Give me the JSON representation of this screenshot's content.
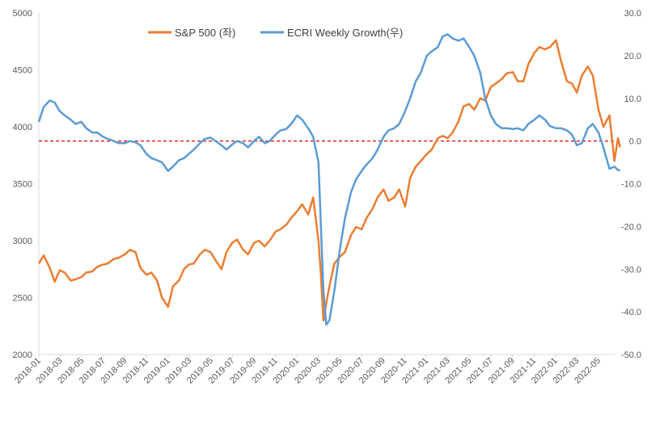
{
  "chart_data": {
    "type": "line",
    "x_ticks": [
      "2018-01",
      "2018-03",
      "2018-05",
      "2018-07",
      "2018-09",
      "2018-11",
      "2019-01",
      "2019-03",
      "2019-05",
      "2019-07",
      "2019-09",
      "2019-11",
      "2020-01",
      "2020-03",
      "2020-05",
      "2020-07",
      "2020-09",
      "2020-11",
      "2021-01",
      "2021-03",
      "2021-05",
      "2021-07",
      "2021-09",
      "2021-11",
      "2022-01",
      "2022-03",
      "2022-05"
    ],
    "y_left": {
      "ticks": [
        "2000",
        "2500",
        "3000",
        "3500",
        "4000",
        "4500",
        "5000"
      ],
      "min": 2000,
      "max": 5000
    },
    "y_right": {
      "ticks": [
        "-50.0",
        "-40.0",
        "-30.0",
        "-20.0",
        "-10.0",
        "0.0",
        "10.0",
        "20.0",
        "30.0"
      ],
      "min": -50,
      "max": 30
    },
    "reference_line": {
      "axis": "right",
      "value": 0,
      "color": "#e00000",
      "style": "dashed"
    },
    "grid": false,
    "legend_position": "top",
    "series": [
      {
        "name": "S&P 500 (좌)",
        "axis": "left",
        "color": "#ed7d31",
        "points": [
          [
            "2018-01",
            2800
          ],
          [
            "2018-01-15",
            2870
          ],
          [
            "2018-02",
            2760
          ],
          [
            "2018-02-15",
            2640
          ],
          [
            "2018-03",
            2740
          ],
          [
            "2018-03-15",
            2720
          ],
          [
            "2018-04",
            2650
          ],
          [
            "2018-04-15",
            2660
          ],
          [
            "2018-05",
            2680
          ],
          [
            "2018-05-15",
            2720
          ],
          [
            "2018-06",
            2730
          ],
          [
            "2018-06-15",
            2770
          ],
          [
            "2018-07",
            2790
          ],
          [
            "2018-07-15",
            2800
          ],
          [
            "2018-08",
            2840
          ],
          [
            "2018-08-15",
            2850
          ],
          [
            "2018-09",
            2880
          ],
          [
            "2018-09-15",
            2920
          ],
          [
            "2018-10",
            2900
          ],
          [
            "2018-10-15",
            2760
          ],
          [
            "2018-11",
            2700
          ],
          [
            "2018-11-15",
            2720
          ],
          [
            "2018-12",
            2650
          ],
          [
            "2018-12-15",
            2500
          ],
          [
            "2019-01",
            2420
          ],
          [
            "2019-01-15",
            2600
          ],
          [
            "2019-02",
            2650
          ],
          [
            "2019-02-15",
            2750
          ],
          [
            "2019-03",
            2790
          ],
          [
            "2019-03-15",
            2800
          ],
          [
            "2019-04",
            2880
          ],
          [
            "2019-04-15",
            2920
          ],
          [
            "2019-05",
            2900
          ],
          [
            "2019-05-15",
            2830
          ],
          [
            "2019-06",
            2750
          ],
          [
            "2019-06-15",
            2900
          ],
          [
            "2019-07",
            2980
          ],
          [
            "2019-07-15",
            3010
          ],
          [
            "2019-08",
            2920
          ],
          [
            "2019-08-15",
            2880
          ],
          [
            "2019-09",
            2980
          ],
          [
            "2019-09-15",
            3000
          ],
          [
            "2019-10",
            2950
          ],
          [
            "2019-10-15",
            3000
          ],
          [
            "2019-11",
            3080
          ],
          [
            "2019-11-15",
            3100
          ],
          [
            "2019-12",
            3140
          ],
          [
            "2019-12-15",
            3200
          ],
          [
            "2020-01",
            3260
          ],
          [
            "2020-01-15",
            3320
          ],
          [
            "2020-02",
            3230
          ],
          [
            "2020-02-15",
            3380
          ],
          [
            "2020-03",
            3000
          ],
          [
            "2020-03-08",
            2700
          ],
          [
            "2020-03-15",
            2300
          ],
          [
            "2020-03-23",
            2450
          ],
          [
            "2020-04",
            2600
          ],
          [
            "2020-04-15",
            2800
          ],
          [
            "2020-05",
            2860
          ],
          [
            "2020-05-15",
            2900
          ],
          [
            "2020-06",
            3050
          ],
          [
            "2020-06-15",
            3120
          ],
          [
            "2020-07",
            3100
          ],
          [
            "2020-07-15",
            3200
          ],
          [
            "2020-08",
            3280
          ],
          [
            "2020-08-15",
            3380
          ],
          [
            "2020-09",
            3450
          ],
          [
            "2020-09-15",
            3350
          ],
          [
            "2020-10",
            3380
          ],
          [
            "2020-10-15",
            3450
          ],
          [
            "2020-11",
            3300
          ],
          [
            "2020-11-15",
            3550
          ],
          [
            "2020-12",
            3650
          ],
          [
            "2020-12-15",
            3700
          ],
          [
            "2021-01",
            3760
          ],
          [
            "2021-01-15",
            3800
          ],
          [
            "2021-02",
            3900
          ],
          [
            "2021-02-15",
            3920
          ],
          [
            "2021-03",
            3900
          ],
          [
            "2021-03-15",
            3950
          ],
          [
            "2021-04",
            4050
          ],
          [
            "2021-04-15",
            4180
          ],
          [
            "2021-05",
            4200
          ],
          [
            "2021-05-15",
            4150
          ],
          [
            "2021-06",
            4250
          ],
          [
            "2021-06-15",
            4230
          ],
          [
            "2021-07",
            4350
          ],
          [
            "2021-07-15",
            4380
          ],
          [
            "2021-08",
            4420
          ],
          [
            "2021-08-15",
            4470
          ],
          [
            "2021-09",
            4480
          ],
          [
            "2021-09-15",
            4400
          ],
          [
            "2021-10",
            4400
          ],
          [
            "2021-10-15",
            4550
          ],
          [
            "2021-11",
            4650
          ],
          [
            "2021-11-15",
            4700
          ],
          [
            "2021-12",
            4680
          ],
          [
            "2021-12-15",
            4700
          ],
          [
            "2022-01",
            4760
          ],
          [
            "2022-01-15",
            4580
          ],
          [
            "2022-02",
            4400
          ],
          [
            "2022-02-15",
            4380
          ],
          [
            "2022-03",
            4300
          ],
          [
            "2022-03-15",
            4450
          ],
          [
            "2022-04",
            4530
          ],
          [
            "2022-04-15",
            4450
          ],
          [
            "2022-05",
            4150
          ],
          [
            "2022-05-15",
            4000
          ],
          [
            "2022-06",
            4100
          ],
          [
            "2022-06-15",
            3700
          ],
          [
            "2022-06-25",
            3900
          ],
          [
            "2022-07",
            3820
          ]
        ]
      },
      {
        "name": "ECRI Weekly Growth(우)",
        "axis": "right",
        "color": "#5b9bd5",
        "points": [
          [
            "2018-01",
            4.5
          ],
          [
            "2018-01-15",
            8
          ],
          [
            "2018-02",
            9.5
          ],
          [
            "2018-02-15",
            9
          ],
          [
            "2018-03",
            7
          ],
          [
            "2018-03-15",
            6
          ],
          [
            "2018-04",
            5
          ],
          [
            "2018-04-15",
            4
          ],
          [
            "2018-05",
            4.5
          ],
          [
            "2018-05-15",
            3
          ],
          [
            "2018-06",
            2
          ],
          [
            "2018-06-15",
            2
          ],
          [
            "2018-07",
            1
          ],
          [
            "2018-07-15",
            0.5
          ],
          [
            "2018-08",
            0
          ],
          [
            "2018-08-15",
            -0.5
          ],
          [
            "2018-09",
            -0.5
          ],
          [
            "2018-09-15",
            0
          ],
          [
            "2018-10",
            -0.3
          ],
          [
            "2018-10-15",
            -1
          ],
          [
            "2018-11",
            -3
          ],
          [
            "2018-11-15",
            -4
          ],
          [
            "2018-12",
            -4.5
          ],
          [
            "2018-12-15",
            -5
          ],
          [
            "2019-01",
            -7
          ],
          [
            "2019-01-15",
            -6
          ],
          [
            "2019-02",
            -4.5
          ],
          [
            "2019-02-15",
            -4
          ],
          [
            "2019-03",
            -3
          ],
          [
            "2019-03-15",
            -2
          ],
          [
            "2019-04",
            -0.5
          ],
          [
            "2019-04-15",
            0.5
          ],
          [
            "2019-05",
            0.8
          ],
          [
            "2019-05-15",
            0
          ],
          [
            "2019-06",
            -1
          ],
          [
            "2019-06-15",
            -2
          ],
          [
            "2019-07",
            -0.8
          ],
          [
            "2019-07-15",
            0
          ],
          [
            "2019-08",
            -0.5
          ],
          [
            "2019-08-15",
            -1.5
          ],
          [
            "2019-09",
            0
          ],
          [
            "2019-09-15",
            1
          ],
          [
            "2019-10",
            -0.5
          ],
          [
            "2019-10-15",
            0
          ],
          [
            "2019-11",
            1.5
          ],
          [
            "2019-11-15",
            2.5
          ],
          [
            "2019-12",
            2.8
          ],
          [
            "2019-12-15",
            4
          ],
          [
            "2020-01",
            6
          ],
          [
            "2020-01-15",
            5
          ],
          [
            "2020-02",
            3
          ],
          [
            "2020-02-15",
            1
          ],
          [
            "2020-03",
            -5
          ],
          [
            "2020-03-08",
            -20
          ],
          [
            "2020-03-15",
            -35
          ],
          [
            "2020-03-23",
            -43
          ],
          [
            "2020-04",
            -42
          ],
          [
            "2020-04-15",
            -35
          ],
          [
            "2020-05",
            -25
          ],
          [
            "2020-05-15",
            -18
          ],
          [
            "2020-06",
            -12
          ],
          [
            "2020-06-15",
            -9
          ],
          [
            "2020-07",
            -7
          ],
          [
            "2020-07-15",
            -5.5
          ],
          [
            "2020-08",
            -4
          ],
          [
            "2020-08-15",
            -2
          ],
          [
            "2020-09",
            1
          ],
          [
            "2020-09-15",
            2.5
          ],
          [
            "2020-10",
            3
          ],
          [
            "2020-10-15",
            4
          ],
          [
            "2020-11",
            7
          ],
          [
            "2020-11-15",
            10
          ],
          [
            "2020-12",
            14
          ],
          [
            "2020-12-15",
            16
          ],
          [
            "2021-01",
            20
          ],
          [
            "2021-01-15",
            21
          ],
          [
            "2021-02",
            22
          ],
          [
            "2021-02-15",
            24.5
          ],
          [
            "2021-03",
            25
          ],
          [
            "2021-03-15",
            24
          ],
          [
            "2021-04",
            23.5
          ],
          [
            "2021-04-15",
            24
          ],
          [
            "2021-05",
            22
          ],
          [
            "2021-05-15",
            20
          ],
          [
            "2021-06",
            16
          ],
          [
            "2021-06-15",
            10
          ],
          [
            "2021-07",
            6
          ],
          [
            "2021-07-15",
            4
          ],
          [
            "2021-08",
            3
          ],
          [
            "2021-08-15",
            3
          ],
          [
            "2021-09",
            2.8
          ],
          [
            "2021-09-15",
            3
          ],
          [
            "2021-10",
            2.5
          ],
          [
            "2021-10-15",
            4
          ],
          [
            "2021-11",
            5
          ],
          [
            "2021-11-15",
            6
          ],
          [
            "2021-12",
            5
          ],
          [
            "2021-12-15",
            3.5
          ],
          [
            "2022-01",
            3
          ],
          [
            "2022-01-15",
            3
          ],
          [
            "2022-02",
            2.5
          ],
          [
            "2022-02-15",
            1.5
          ],
          [
            "2022-03",
            -1
          ],
          [
            "2022-03-15",
            -0.5
          ],
          [
            "2022-04",
            3
          ],
          [
            "2022-04-15",
            4
          ],
          [
            "2022-05",
            2
          ],
          [
            "2022-05-15",
            -1.5
          ],
          [
            "2022-06",
            -6.5
          ],
          [
            "2022-06-15",
            -6
          ],
          [
            "2022-06-25",
            -6.8
          ],
          [
            "2022-07",
            -6.8
          ]
        ]
      }
    ]
  }
}
